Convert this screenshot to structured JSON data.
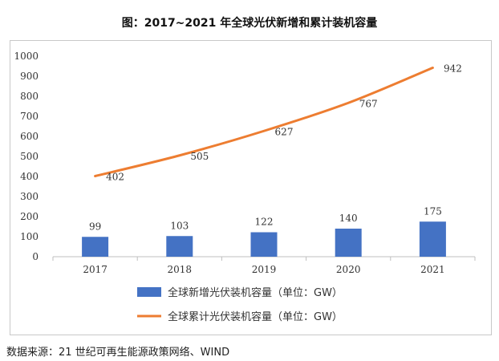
{
  "title": "图：2017~2021 年全球光伏新增和累计装机容量",
  "source": "数据来源：21 世纪可再生能源政策网络、WIND",
  "colors": {
    "bar": "#4472c4",
    "line": "#ed7d31",
    "axis": "#bfbfbf"
  },
  "chart_data": {
    "type": "bar+line",
    "categories": [
      "2017",
      "2018",
      "2019",
      "2020",
      "2021"
    ],
    "ylim": [
      0,
      1000
    ],
    "yticks": [
      "0",
      "100",
      "200",
      "300",
      "400",
      "500",
      "600",
      "700",
      "800",
      "900",
      "1000"
    ],
    "grid": false,
    "legend_position": "bottom",
    "series": [
      {
        "name": "全球新增光伏装机容量（单位：GW）",
        "type": "bar",
        "values": [
          99,
          103,
          122,
          140,
          175
        ]
      },
      {
        "name": "全球累计光伏装机容量（单位：GW）",
        "type": "line",
        "values": [
          402,
          505,
          627,
          767,
          942
        ]
      }
    ]
  }
}
